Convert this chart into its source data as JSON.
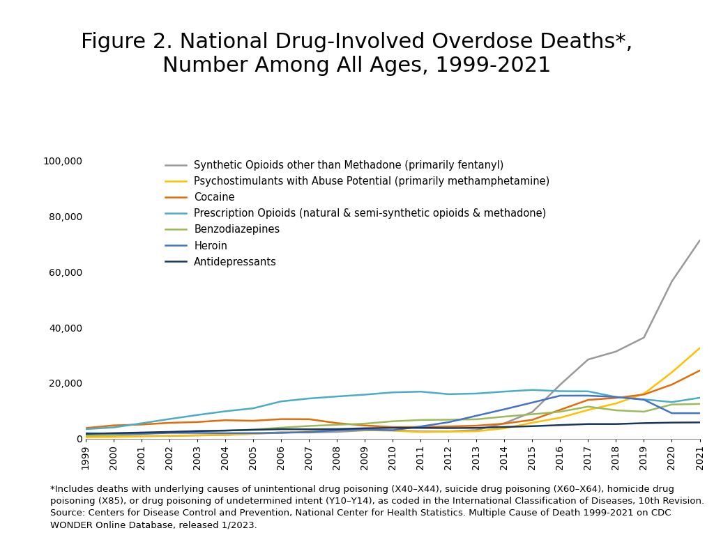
{
  "title": "Figure 2. National Drug-Involved Overdose Deaths*,\nNumber Among All Ages, 1999-2021",
  "years": [
    1999,
    2000,
    2001,
    2002,
    2003,
    2004,
    2005,
    2006,
    2007,
    2008,
    2009,
    2010,
    2011,
    2012,
    2013,
    2014,
    2015,
    2016,
    2017,
    2018,
    2019,
    2020,
    2021
  ],
  "series": [
    {
      "label": "Synthetic Opioids other than Methadone (primarily fentanyl)",
      "color": "#999999",
      "values": [
        730,
        782,
        957,
        1013,
        1166,
        1326,
        1742,
        2315,
        2213,
        2446,
        3007,
        3007,
        2666,
        2628,
        3105,
        5544,
        9580,
        19413,
        28466,
        31335,
        36359,
        56516,
        71238
      ]
    },
    {
      "label": "Psychostimulants with Abuse Potential (primarily methamphetamine)",
      "color": "#FFC000",
      "values": [
        547,
        611,
        840,
        1043,
        1258,
        1380,
        1742,
        2115,
        2611,
        3128,
        3085,
        2856,
        2408,
        2549,
        2668,
        3728,
        5716,
        7542,
        10333,
        12676,
        16167,
        23837,
        32537
      ]
    },
    {
      "label": "Cocaine",
      "color": "#E36C09",
      "values": [
        3822,
        4782,
        5093,
        5704,
        5991,
        6644,
        6445,
        7037,
        7014,
        5604,
        4760,
        4183,
        4213,
        4403,
        4673,
        5415,
        6784,
        10375,
        13942,
        14666,
        15883,
        19447,
        24486
      ]
    },
    {
      "label": "Prescription Opioids (natural & semi-synthetic opioids & methadone)",
      "color": "#4BACC6",
      "values": [
        3442,
        4051,
        5528,
        7073,
        8519,
        9857,
        10928,
        13406,
        14459,
        15186,
        15839,
        16651,
        16917,
        16007,
        16235,
        16941,
        17536,
        17087,
        17029,
        14975,
        14139,
        13165,
        14716
      ]
    },
    {
      "label": "Benzodiazepines",
      "color": "#9BBB59",
      "values": [
        1135,
        1379,
        1742,
        2304,
        2746,
        2877,
        3283,
        3965,
        4573,
        5017,
        5408,
        6270,
        6729,
        6827,
        6973,
        7945,
        8791,
        9697,
        11537,
        10213,
        9711,
        12290,
        12499
      ]
    },
    {
      "label": "Heroin",
      "color": "#4472C4",
      "values": [
        1960,
        1842,
        1779,
        2089,
        2080,
        1974,
        2009,
        2088,
        2399,
        3041,
        3278,
        3036,
        4397,
        5925,
        8257,
        10574,
        12990,
        15469,
        15482,
        14996,
        14019,
        9173,
        9173
      ]
    },
    {
      "label": "Antidepressants",
      "color": "#17375E",
      "values": [
        1749,
        1990,
        2214,
        2449,
        2737,
        2928,
        3187,
        3416,
        3378,
        3447,
        3754,
        3911,
        3882,
        3820,
        3889,
        4219,
        4498,
        4903,
        5269,
        5269,
        5597,
        5785,
        5859
      ]
    }
  ],
  "ylim": [
    0,
    100000
  ],
  "yticks": [
    0,
    20000,
    40000,
    60000,
    80000,
    100000
  ],
  "ytick_labels": [
    "0",
    "20,000",
    "40,000",
    "60,000",
    "80,000",
    "100,000"
  ],
  "footnote": "*Includes deaths with underlying causes of unintentional drug poisoning (X40–X44), suicide drug poisoning (X60–X64), homicide drug\npoisoning (X85), or drug poisoning of undetermined intent (Y10–Y14), as coded in the International Classification of Diseases, 10th Revision.\nSource: Centers for Disease Control and Prevention, National Center for Health Statistics. Multiple Cause of Death 1999-2021 on CDC\nWONDER Online Database, released 1/2023.",
  "background_color": "#FFFFFF",
  "title_fontsize": 22,
  "legend_fontsize": 10.5,
  "tick_fontsize": 10,
  "footnote_fontsize": 9.5
}
